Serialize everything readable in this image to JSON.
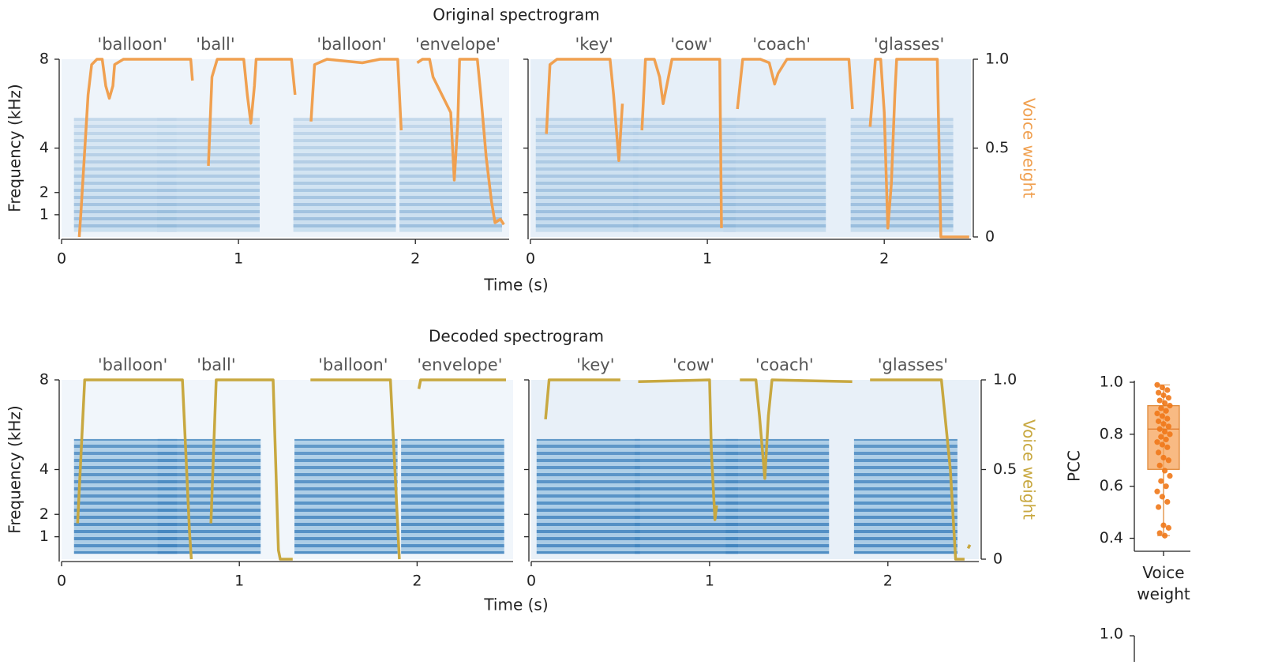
{
  "chart_data": [
    {
      "type": "spectrogram",
      "title": "Original spectrogram",
      "xlabel": "Time (s)",
      "ylabel": "Frequency (kHz)",
      "y2label": "Voice weight",
      "ylim": [
        0,
        8
      ],
      "yticks": [
        1,
        2,
        4,
        8
      ],
      "y2lim": [
        0,
        1
      ],
      "y2ticks": [
        0,
        0.5,
        {
          "value": 1,
          "label": "1.0"
        }
      ],
      "color": "#f0a050",
      "panels": [
        {
          "xlim": [
            0,
            2.53
          ],
          "xticks": [
            0,
            1,
            2
          ],
          "words": [
            {
              "label": "'balloon'",
              "t": 0.4
            },
            {
              "label": "'ball'",
              "t": 0.87
            },
            {
              "label": "'balloon'",
              "t": 1.64
            },
            {
              "label": "'envelope'",
              "t": 2.24
            }
          ],
          "voice_weight": {
            "x": [
              0.1,
              0.11,
              0.15,
              0.17,
              0.2,
              0.23,
              0.25,
              0.27,
              0.29,
              0.3,
              0.35,
              0.5,
              0.7,
              0.73,
              0.74,
              null,
              0.83,
              0.85,
              0.88,
              1.0,
              1.03,
              1.05,
              1.07,
              1.09,
              1.1,
              1.2,
              1.3,
              1.32,
              null,
              1.41,
              1.43,
              1.5,
              1.6,
              1.7,
              1.8,
              1.9,
              1.92,
              null,
              2.01,
              2.04,
              2.08,
              2.1,
              2.2,
              2.22,
              2.24,
              2.25,
              2.35,
              2.37,
              2.4,
              2.43,
              2.45,
              2.48,
              2.5
            ],
            "values": [
              0,
              0.15,
              0.8,
              0.97,
              1,
              1,
              0.85,
              0.78,
              0.85,
              0.97,
              1,
              1,
              1,
              1,
              0.88,
              null,
              0.4,
              0.9,
              1,
              1,
              1,
              0.8,
              0.64,
              0.85,
              1,
              1,
              1,
              0.8,
              null,
              0.65,
              0.97,
              1,
              0.99,
              0.98,
              1,
              1,
              0.6,
              null,
              0.98,
              1,
              1,
              0.9,
              0.7,
              0.32,
              0.65,
              1,
              1,
              0.8,
              0.45,
              0.2,
              0.08,
              0.1,
              0.07
            ]
          }
        },
        {
          "xlim": [
            0,
            2.49
          ],
          "xticks": [
            0,
            1,
            2
          ],
          "words": [
            {
              "label": "'key'",
              "t": 0.36
            },
            {
              "label": "'cow'",
              "t": 0.91
            },
            {
              "label": "'coach'",
              "t": 1.42
            },
            {
              "label": "'glasses'",
              "t": 2.14
            }
          ],
          "voice_weight": {
            "x": [
              0.09,
              0.11,
              0.15,
              0.3,
              0.45,
              0.47,
              0.5,
              0.52,
              null,
              0.63,
              0.65,
              0.7,
              0.73,
              0.75,
              0.77,
              0.8,
              1.0,
              1.07,
              1.08,
              null,
              1.17,
              1.2,
              1.3,
              1.35,
              1.38,
              1.4,
              1.45,
              1.6,
              1.8,
              1.82,
              null,
              1.92,
              1.95,
              1.98,
              2.0,
              2.02,
              2.04,
              2.06,
              2.07,
              2.3,
              2.32,
              2.48
            ],
            "values": [
              0.58,
              0.97,
              1,
              1,
              1,
              0.8,
              0.43,
              0.75,
              null,
              0.6,
              1,
              1,
              0.9,
              0.75,
              0.85,
              1,
              1,
              1,
              0.05,
              null,
              0.72,
              1,
              1,
              0.98,
              0.86,
              0.92,
              1,
              1,
              1,
              0.72,
              null,
              0.62,
              1,
              1,
              0.7,
              0.05,
              0.3,
              0.8,
              1,
              1,
              0,
              0
            ]
          }
        }
      ]
    },
    {
      "type": "spectrogram",
      "title": "Decoded spectrogram",
      "xlabel": "Time (s)",
      "ylabel": "Frequency (kHz)",
      "y2label": "Voice weight",
      "ylim": [
        0,
        8
      ],
      "yticks": [
        1,
        2,
        4,
        8
      ],
      "y2lim": [
        0,
        1
      ],
      "y2ticks": [
        0,
        0.5,
        {
          "value": 1,
          "label": "1.0"
        }
      ],
      "color": "#c8a840",
      "panels": [
        {
          "xlim": [
            0,
            2.54
          ],
          "xticks": [
            0,
            1,
            2
          ],
          "words": [
            {
              "label": "'balloon'",
              "t": 0.4
            },
            {
              "label": "'ball'",
              "t": 0.87
            },
            {
              "label": "'balloon'",
              "t": 1.64
            },
            {
              "label": "'envelope'",
              "t": 2.24
            }
          ],
          "voice_weight": {
            "x": [
              0.09,
              0.13,
              0.3,
              0.68,
              0.72,
              0.73,
              null,
              0.84,
              0.87,
              1.0,
              1.19,
              1.22,
              1.23,
              1.3,
              null,
              1.4,
              1.85,
              1.88,
              1.9,
              null,
              2.01,
              2.02,
              2.5
            ],
            "values": [
              0.2,
              1,
              1,
              1,
              0.15,
              0,
              null,
              0.2,
              1,
              1,
              1,
              0.05,
              0,
              0,
              null,
              1,
              1,
              0.4,
              0,
              null,
              0.95,
              1,
              1
            ]
          }
        },
        {
          "xlim": [
            0,
            2.51
          ],
          "xticks": [
            0,
            1,
            2
          ],
          "words": [
            {
              "label": "'key'",
              "t": 0.36
            },
            {
              "label": "'cow'",
              "t": 0.91
            },
            {
              "label": "'coach'",
              "t": 1.42
            },
            {
              "label": "'glasses'",
              "t": 2.14
            }
          ],
          "voice_weight": {
            "x": [
              0.08,
              0.1,
              0.5,
              null,
              0.6,
              1.0,
              1.01,
              1.03,
              1.04,
              null,
              1.17,
              1.26,
              1.28,
              1.31,
              1.33,
              1.35,
              1.8,
              null,
              1.9,
              2.3,
              2.35,
              2.38,
              2.43,
              null,
              2.45,
              2.46
            ],
            "values": [
              0.78,
              1,
              1,
              null,
              0.99,
              1,
              0.6,
              0.22,
              0.3,
              null,
              1,
              1,
              0.8,
              0.45,
              0.8,
              1,
              0.99,
              null,
              1,
              1,
              0.5,
              0,
              0,
              null,
              0.06,
              0.08
            ]
          }
        }
      ]
    },
    {
      "type": "box",
      "ylabel": "PCC",
      "categories": [
        "Voice weight"
      ],
      "color": "#f5a35a",
      "ylim": [
        0.35,
        1.0
      ],
      "yticks": [
        0.4,
        0.6,
        0.8,
        {
          "value": 1,
          "label": "1.0"
        }
      ],
      "box": {
        "min": 0.41,
        "q1": 0.665,
        "median": 0.82,
        "q3": 0.91,
        "max": 0.99
      },
      "points": [
        0.99,
        0.98,
        0.97,
        0.96,
        0.95,
        0.94,
        0.93,
        0.92,
        0.91,
        0.9,
        0.89,
        0.88,
        0.87,
        0.86,
        0.85,
        0.84,
        0.83,
        0.82,
        0.81,
        0.8,
        0.79,
        0.78,
        0.77,
        0.76,
        0.75,
        0.73,
        0.71,
        0.7,
        0.68,
        0.66,
        0.64,
        0.62,
        0.6,
        0.58,
        0.56,
        0.54,
        0.52,
        0.45,
        0.44,
        0.42,
        0.41
      ]
    },
    {
      "type": "partial",
      "yticks": [
        {
          "value": 1,
          "label": "1.0"
        }
      ]
    }
  ]
}
